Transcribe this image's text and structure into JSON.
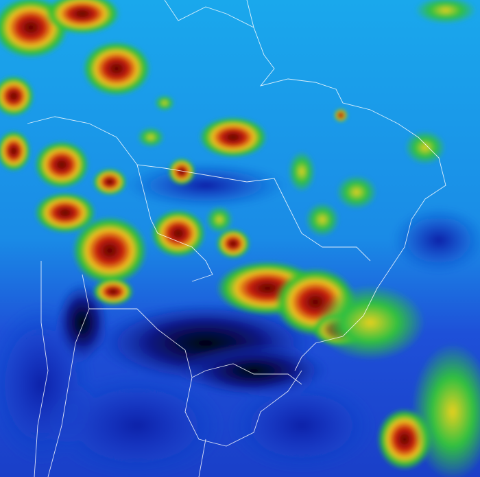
{
  "image": {
    "type": "satellite-enhanced-infrared",
    "region": "South America",
    "palette": {
      "coldest_tops": "#6b0000",
      "very_cold": "#d42a10",
      "cold": "#f0d020",
      "moderate": "#30c030",
      "moist": "#19a0e8",
      "mid": "#1e60e0",
      "dry": "#0a1a90",
      "very_dry": "#020412",
      "borders": "#ffffff"
    }
  }
}
